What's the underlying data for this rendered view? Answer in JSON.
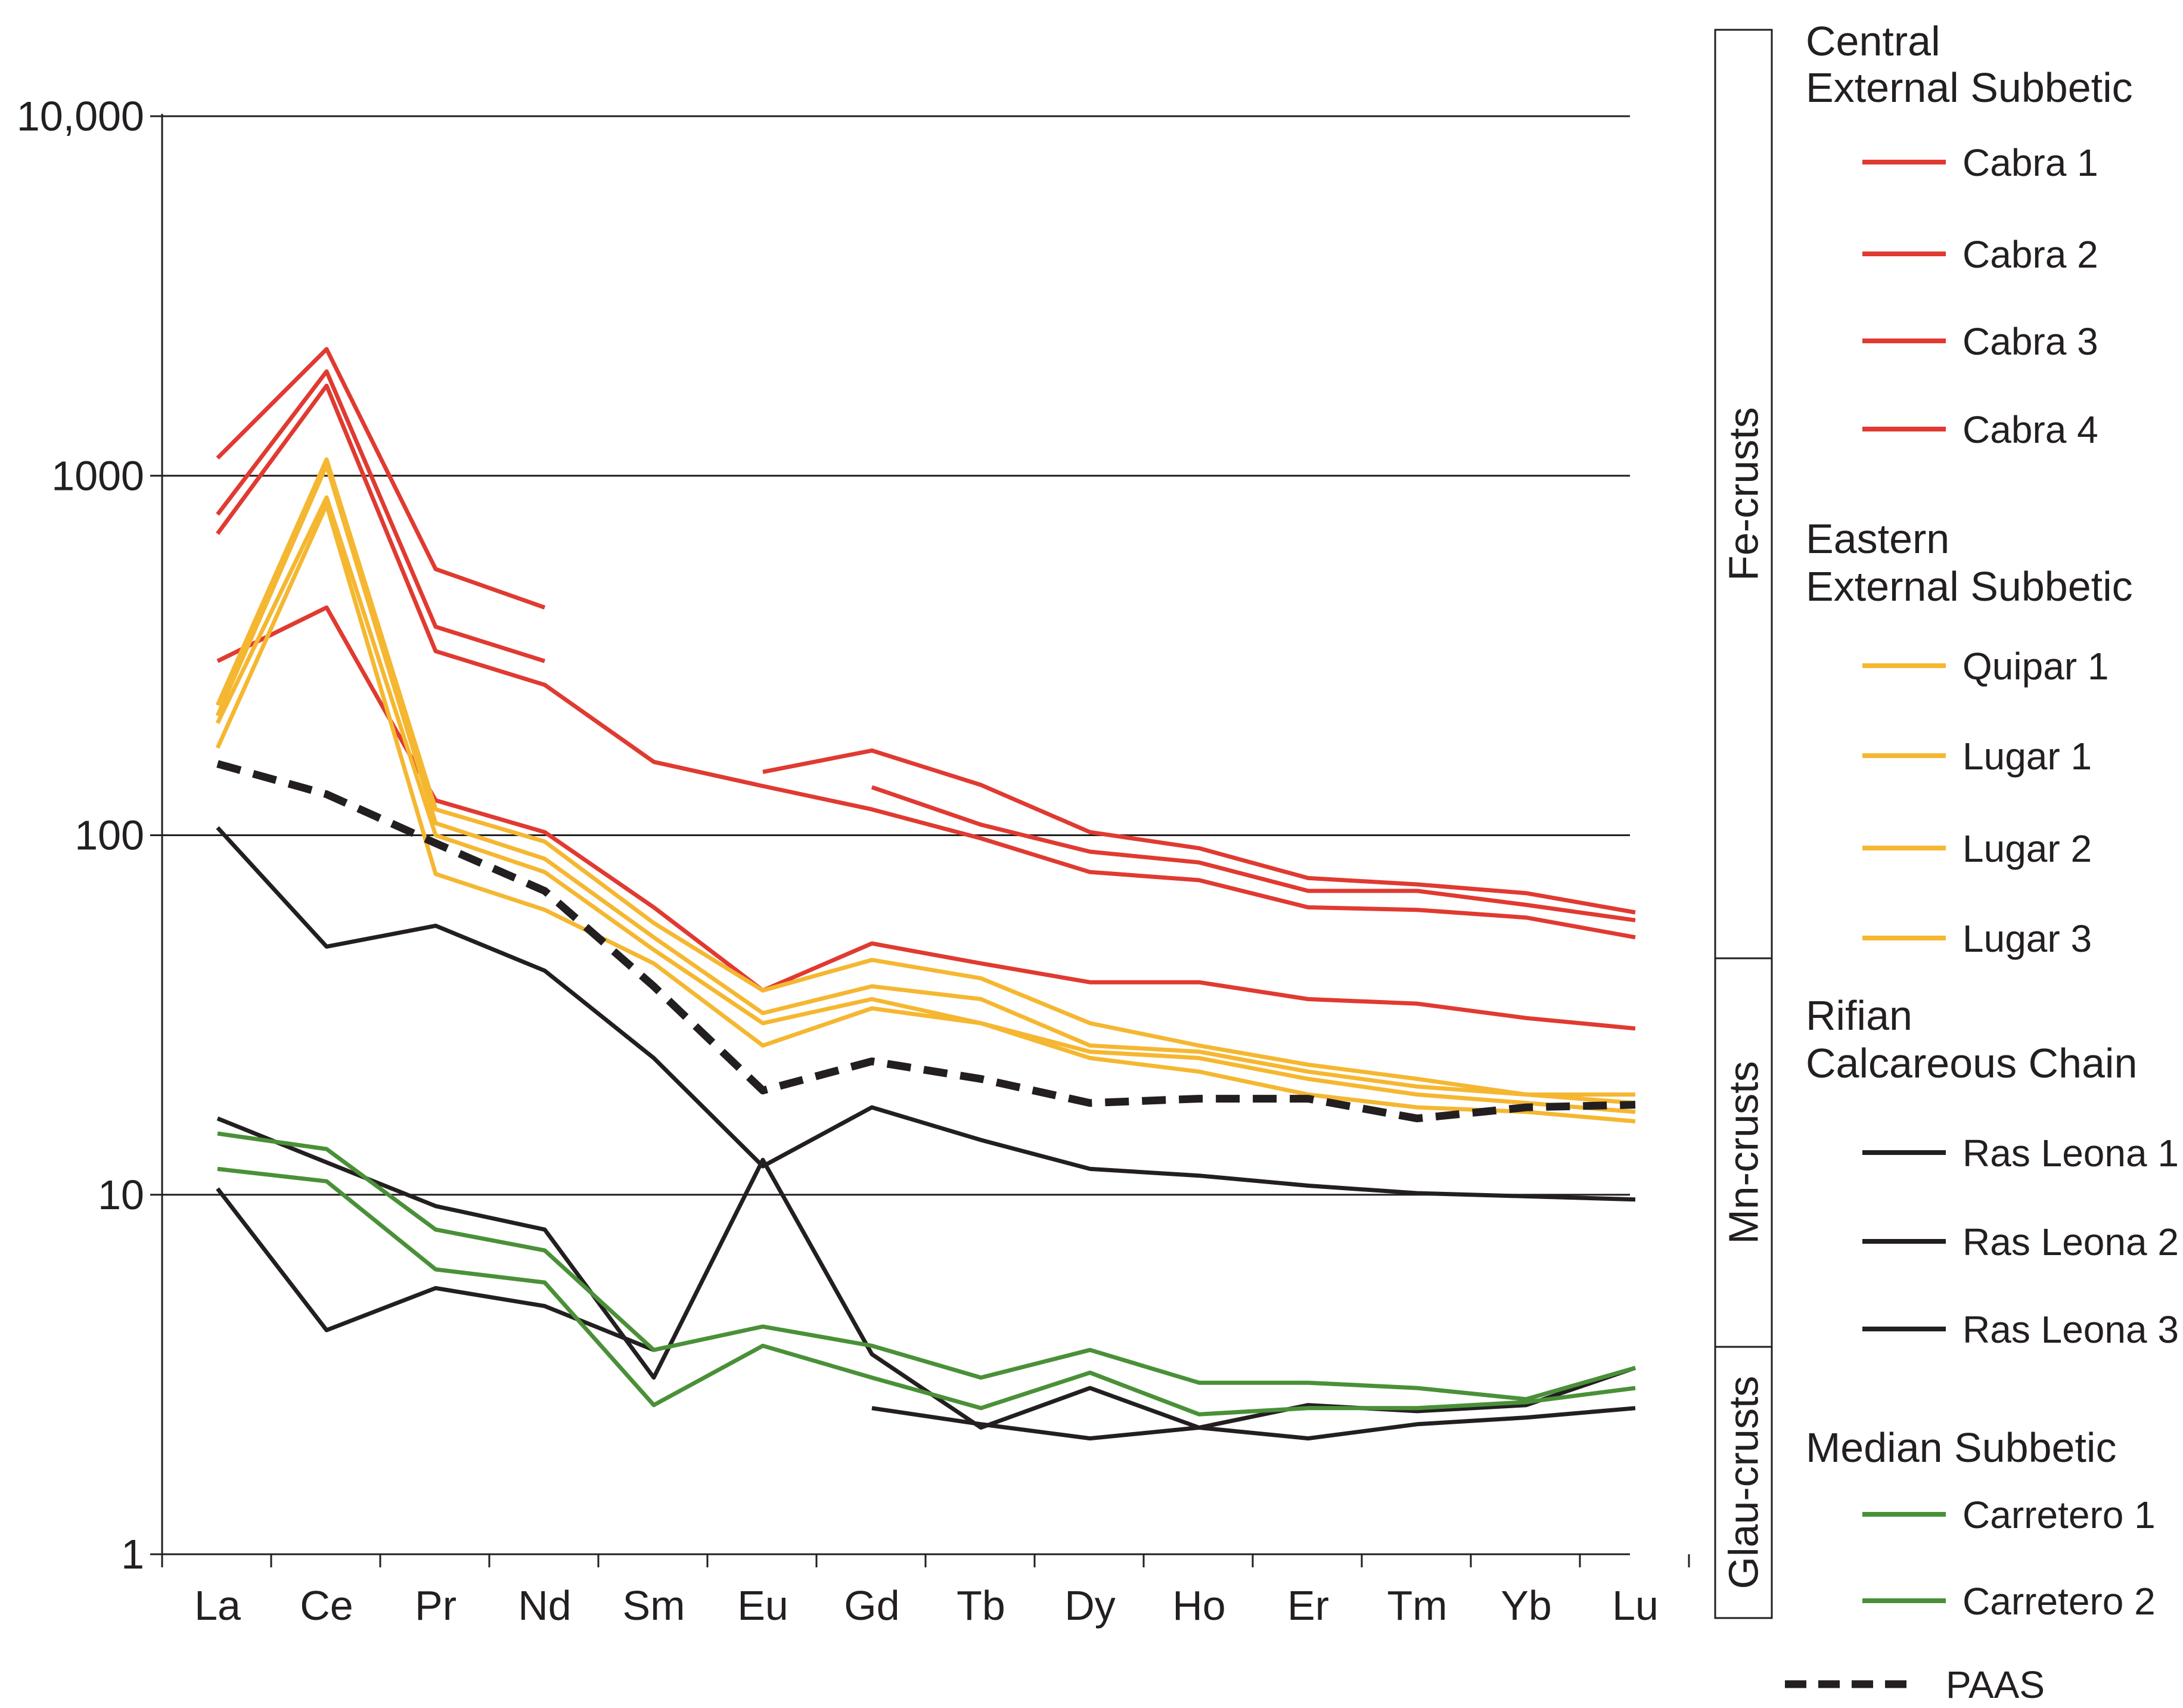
{
  "chart_data": {
    "type": "line",
    "yscale": "log",
    "ylim": [
      1,
      10000
    ],
    "yticks": [
      {
        "value": 1,
        "label": "1"
      },
      {
        "value": 10,
        "label": "10"
      },
      {
        "value": 100,
        "label": "100"
      },
      {
        "value": 1000,
        "label": "1000"
      },
      {
        "value": 10000,
        "label": "10,000"
      }
    ],
    "categories": [
      "La",
      "Ce",
      "Pr",
      "Nd",
      "Sm",
      "Eu",
      "Gd",
      "Tb",
      "Dy",
      "Ho",
      "Er",
      "Tm",
      "Yb",
      "Lu"
    ],
    "grid": "horizontal",
    "legend_position": "right",
    "legend_groups": [
      {
        "title": [
          "Central",
          "External Subbetic"
        ],
        "items": [
          "Cabra 1",
          "Cabra 2",
          "Cabra 3",
          "Cabra 4"
        ],
        "color": "#e03a31"
      },
      {
        "title": [
          "Eastern",
          "External Subbetic"
        ],
        "items": [
          "Quipar 1",
          "Lugar 1",
          "Lugar 2",
          "Lugar 3"
        ],
        "color": "#f5b731"
      },
      {
        "title": [
          "Rifian",
          "Calcareous Chain"
        ],
        "items": [
          "Ras Leona 1",
          "Ras Leona 2",
          "Ras Leona 3"
        ],
        "color": "#231f20"
      },
      {
        "title": [
          "Median Subbetic"
        ],
        "items": [
          "Carretero 1",
          "Carretero 2"
        ],
        "color": "#4a9038"
      }
    ],
    "reference_series": {
      "name": "PAAS",
      "color": "#231f20",
      "dashed": true
    },
    "bracket_labels": [
      "Fe-crusts",
      "Mn-crusts",
      "Glau-crusts"
    ],
    "series": [
      {
        "name": "Cabra 1",
        "color": "#e03a31",
        "values": [
          1120,
          2250,
          550,
          430,
          null,
          150,
          172,
          138,
          102,
          92,
          76,
          73,
          69,
          61
        ]
      },
      {
        "name": "Cabra 2",
        "color": "#e03a31",
        "values": [
          780,
          1950,
          380,
          305,
          null,
          null,
          136,
          107,
          90,
          84,
          70,
          70,
          64,
          58
        ]
      },
      {
        "name": "Cabra 3",
        "color": "#e03a31",
        "values": [
          690,
          1780,
          325,
          262,
          160,
          137,
          118,
          98,
          79,
          75,
          63,
          62,
          59,
          52
        ]
      },
      {
        "name": "Cabra 4",
        "color": "#e03a31",
        "values": [
          305,
          430,
          125,
          102,
          63,
          37,
          50,
          44,
          39,
          39,
          35,
          34,
          31,
          29
        ]
      },
      {
        "name": "Quipar 1",
        "color": "#f5b731",
        "values": [
          230,
          1110,
          118,
          96,
          57,
          37,
          45,
          40,
          30,
          26,
          23,
          21,
          19,
          19
        ]
      },
      {
        "name": "Lugar 1",
        "color": "#f5b731",
        "values": [
          215,
          1070,
          108,
          86,
          52,
          32,
          38,
          35,
          26,
          25,
          22,
          20,
          19,
          18
        ]
      },
      {
        "name": "Lugar 2",
        "color": "#f5b731",
        "values": [
          205,
          870,
          100,
          79,
          48,
          30,
          35,
          30,
          25,
          24,
          21,
          19,
          18,
          17
        ]
      },
      {
        "name": "Lugar 3",
        "color": "#f5b731",
        "values": [
          175,
          830,
          78,
          62,
          44,
          26,
          33,
          30,
          24,
          22,
          19,
          17.5,
          17,
          16
        ]
      },
      {
        "name": "Ras Leona 1",
        "color": "#231f20",
        "values": [
          105,
          49,
          56,
          42,
          24,
          12,
          17.5,
          14.2,
          11.8,
          11.3,
          10.6,
          10.1,
          9.9,
          9.7
        ]
      },
      {
        "name": "Ras Leona 2",
        "color": "#231f20",
        "values": [
          16.3,
          12.3,
          9.3,
          8.0,
          3.1,
          12.5,
          3.6,
          2.25,
          2.9,
          2.25,
          2.6,
          2.5,
          2.6,
          3.3
        ]
      },
      {
        "name": "Ras Leona 3",
        "color": "#231f20",
        "values": [
          10.4,
          4.2,
          5.5,
          4.9,
          3.7,
          null,
          2.55,
          2.3,
          2.1,
          2.25,
          2.1,
          2.3,
          2.4,
          2.55
        ]
      },
      {
        "name": "Carretero 1",
        "color": "#4a9038",
        "values": [
          14.8,
          13.4,
          8.0,
          7.0,
          3.7,
          4.3,
          3.8,
          3.1,
          3.7,
          3.0,
          3.0,
          2.9,
          2.7,
          3.3
        ]
      },
      {
        "name": "Carretero 2",
        "color": "#4a9038",
        "values": [
          11.8,
          10.9,
          6.2,
          5.7,
          2.6,
          3.8,
          3.1,
          2.55,
          3.2,
          2.45,
          2.55,
          2.55,
          2.65,
          2.9
        ]
      },
      {
        "name": "PAAS",
        "color": "#231f20",
        "dashed": true,
        "values": [
          158,
          130,
          95,
          70,
          38,
          19.5,
          23.5,
          21,
          18,
          18.5,
          18.5,
          16.3,
          17.5,
          17.8
        ]
      }
    ]
  }
}
